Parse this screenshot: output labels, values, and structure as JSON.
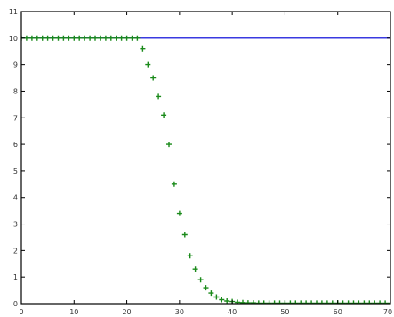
{
  "chart_data": {
    "type": "line",
    "title": "",
    "xlabel": "",
    "ylabel": "",
    "xlim": [
      0,
      70
    ],
    "ylim": [
      0,
      11
    ],
    "xticks": [
      "0",
      "10",
      "20",
      "30",
      "40",
      "50",
      "60",
      "70"
    ],
    "yticks": [
      "0",
      "1",
      "2",
      "3",
      "4",
      "5",
      "6",
      "7",
      "8",
      "9",
      "10",
      "11"
    ],
    "grid": false,
    "legend": "none",
    "colors": {
      "line": "#3a3ae0",
      "markers": "#1a8a1a",
      "axes": "#000000"
    },
    "series": [
      {
        "style": "line",
        "x": [
          0,
          70
        ],
        "y": [
          10,
          10
        ]
      },
      {
        "style": "markers",
        "marker": "+",
        "x": [
          0,
          1,
          2,
          3,
          4,
          5,
          6,
          7,
          8,
          9,
          10,
          11,
          12,
          13,
          14,
          15,
          16,
          17,
          18,
          19,
          20,
          21,
          22,
          23,
          24,
          25,
          26,
          27,
          28,
          29,
          30,
          31,
          32,
          33,
          34,
          35,
          36,
          37,
          38,
          39,
          40,
          41,
          42,
          43,
          44,
          45,
          46,
          47,
          48,
          49,
          50,
          51,
          52,
          53,
          54,
          55,
          56,
          57,
          58,
          59,
          60,
          61,
          62,
          63,
          64,
          65,
          66,
          67,
          68,
          69,
          70
        ],
        "y": [
          10,
          10,
          10,
          10,
          10,
          10,
          10,
          10,
          10,
          10,
          10,
          10,
          10,
          10,
          10,
          10,
          10,
          10,
          10,
          10,
          10,
          10,
          10,
          9.6,
          9.0,
          8.5,
          7.8,
          7.1,
          6.0,
          4.5,
          3.4,
          2.6,
          1.8,
          1.3,
          0.9,
          0.6,
          0.4,
          0.25,
          0.15,
          0.1,
          0.08,
          0.05,
          0.04,
          0.03,
          0.03,
          0.02,
          0.02,
          0.02,
          0.02,
          0.02,
          0.02,
          0.02,
          0.02,
          0.02,
          0.02,
          0.02,
          0.02,
          0.02,
          0.02,
          0.02,
          0.02,
          0.02,
          0.02,
          0.02,
          0.02,
          0.02,
          0.02,
          0.02,
          0.02,
          0.02,
          0.02
        ]
      }
    ]
  }
}
